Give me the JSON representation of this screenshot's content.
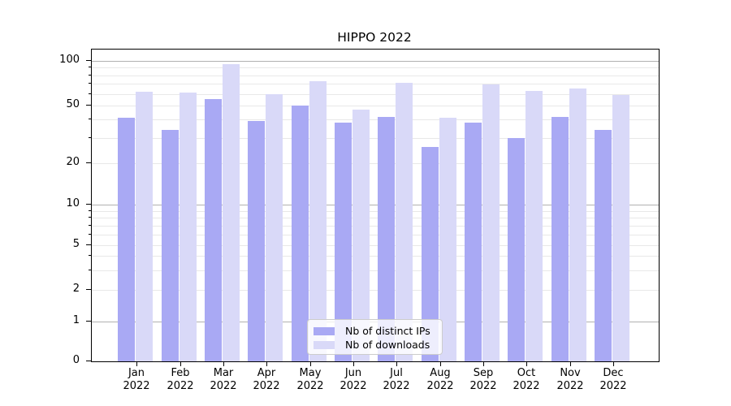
{
  "title": "HIPPO 2022",
  "chart_data": {
    "type": "bar",
    "title": "HIPPO 2022",
    "categories": [
      "Jan 2022",
      "Feb 2022",
      "Mar 2022",
      "Apr 2022",
      "May 2022",
      "Jun 2022",
      "Jul 2022",
      "Aug 2022",
      "Sep 2022",
      "Oct 2022",
      "Nov 2022",
      "Dec 2022"
    ],
    "category_months": [
      "Jan",
      "Feb",
      "Mar",
      "Apr",
      "May",
      "Jun",
      "Jul",
      "Aug",
      "Sep",
      "Oct",
      "Nov",
      "Dec"
    ],
    "category_year": "2022",
    "series": [
      {
        "name": "Nb of distinct IPs",
        "color": "#a9a9f4",
        "values": [
          41,
          34,
          55,
          39,
          50,
          38,
          42,
          26,
          38,
          30,
          42,
          34
        ]
      },
      {
        "name": "Nb of downloads",
        "color": "#d9d9f8",
        "values": [
          62,
          61,
          95,
          60,
          73,
          47,
          71,
          41,
          69,
          63,
          65,
          59
        ]
      }
    ],
    "xlabel": "",
    "ylabel": "",
    "yscale": "symlog",
    "ylim": [
      0,
      120
    ],
    "y_ticks": [
      0,
      1,
      2,
      5,
      10,
      20,
      50,
      100
    ],
    "y_minor_ticks": [
      2,
      3,
      4,
      5,
      6,
      7,
      8,
      9,
      20,
      30,
      40,
      50,
      60,
      70,
      80,
      90
    ],
    "y_major_gridlines": [
      1,
      10,
      100
    ],
    "grid": true,
    "legend": {
      "position": "lower center",
      "entries": [
        "Nb of distinct IPs",
        "Nb of downloads"
      ]
    },
    "colors": {
      "bar_dark": "#a9a9f4",
      "bar_light": "#d9d9f8",
      "grid_major": "#b0b0b0",
      "grid_minor": "#e8e8e8",
      "axis": "#000000",
      "background": "#ffffff"
    }
  }
}
